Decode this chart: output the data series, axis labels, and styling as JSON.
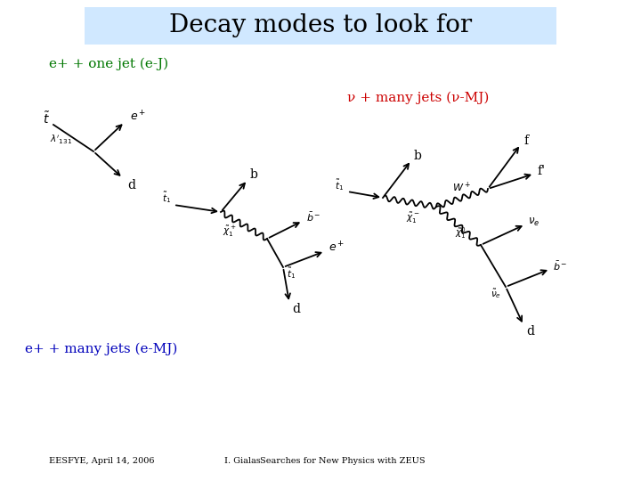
{
  "title": "Decay modes to look for",
  "title_bg": "#d0e8ff",
  "title_fontsize": 20,
  "label_eJ": "e+ + one jet (e-J)",
  "label_eMJ": "e+ + many jets (e-MJ)",
  "label_nuMJ": "ν + many jets (ν-MJ)",
  "color_green": "#007700",
  "color_blue": "#0000bb",
  "color_red": "#cc0000",
  "color_black": "#000000",
  "footer_left": "EESFYE, April 14, 2006",
  "footer_center": "I. Gialas",
  "footer_right": "Searches for New Physics with ZEUS",
  "bg_color": "#ffffff"
}
